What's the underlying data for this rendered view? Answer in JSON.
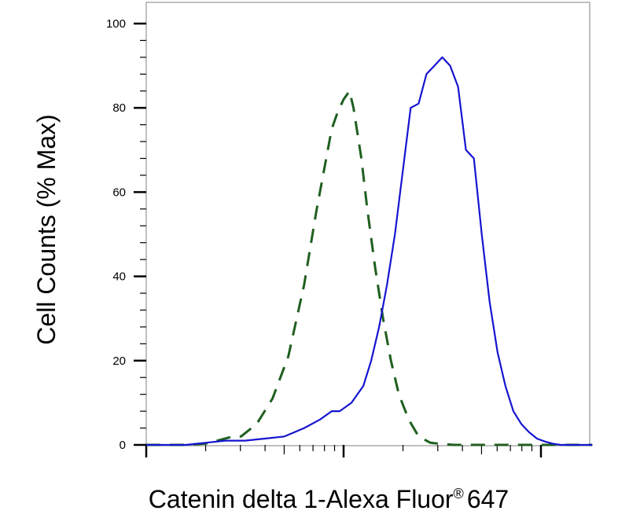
{
  "chart_data": {
    "type": "line",
    "xlabel": "Catenin delta 1-Alexa Fluor",
    "xlabel_suffix": "647",
    "xlabel_mark": "®",
    "ylabel": "Cell Counts (% Max)",
    "ylim": [
      0,
      100
    ],
    "yticks": [
      "0",
      "20",
      "40",
      "60",
      "80",
      "100"
    ],
    "x_scale": "log",
    "x_decades": [
      0,
      1,
      2
    ],
    "grid": false,
    "legend": "none",
    "series": [
      {
        "style": "dashed",
        "color": "#1f5f1f",
        "x": [
          0.0,
          0.1,
          0.2,
          0.3,
          0.36,
          0.44,
          0.48,
          0.56,
          0.64,
          0.72,
          0.8,
          0.86,
          0.9,
          0.94,
          0.97,
          1.0,
          1.03,
          1.05,
          1.09,
          1.12,
          1.16,
          1.2,
          1.24,
          1.28,
          1.33,
          1.38,
          1.44,
          1.5,
          1.56,
          1.62,
          1.7,
          1.8,
          1.9,
          2.0,
          2.1,
          2.26
        ],
        "y": [
          0,
          0,
          0,
          0.3,
          1,
          2,
          2,
          5,
          11,
          21,
          38,
          55,
          65,
          75,
          79,
          82,
          84,
          80,
          68,
          56,
          42,
          30,
          20,
          12,
          6,
          2,
          0.5,
          0.2,
          0,
          0,
          0,
          0,
          0,
          0,
          0,
          0
        ]
      },
      {
        "style": "solid",
        "color": "#1515d0",
        "x": [
          0.0,
          0.2,
          0.3,
          0.4,
          0.5,
          0.6,
          0.7,
          0.8,
          0.88,
          0.94,
          0.98,
          1.04,
          1.1,
          1.14,
          1.18,
          1.22,
          1.26,
          1.3,
          1.34,
          1.38,
          1.42,
          1.46,
          1.5,
          1.54,
          1.58,
          1.62,
          1.66,
          1.7,
          1.74,
          1.78,
          1.82,
          1.86,
          1.9,
          1.94,
          1.98,
          2.02,
          2.06,
          2.1,
          2.18,
          2.26
        ],
        "y": [
          0,
          0,
          0.5,
          1,
          1,
          1.5,
          2,
          4,
          6,
          8,
          8,
          10,
          14,
          20,
          28,
          38,
          50,
          65,
          80,
          81,
          88,
          90,
          92,
          90,
          85,
          70,
          68,
          50,
          34,
          22,
          14,
          8,
          5,
          3,
          1.5,
          0.8,
          0.3,
          0,
          0,
          0
        ]
      }
    ]
  }
}
